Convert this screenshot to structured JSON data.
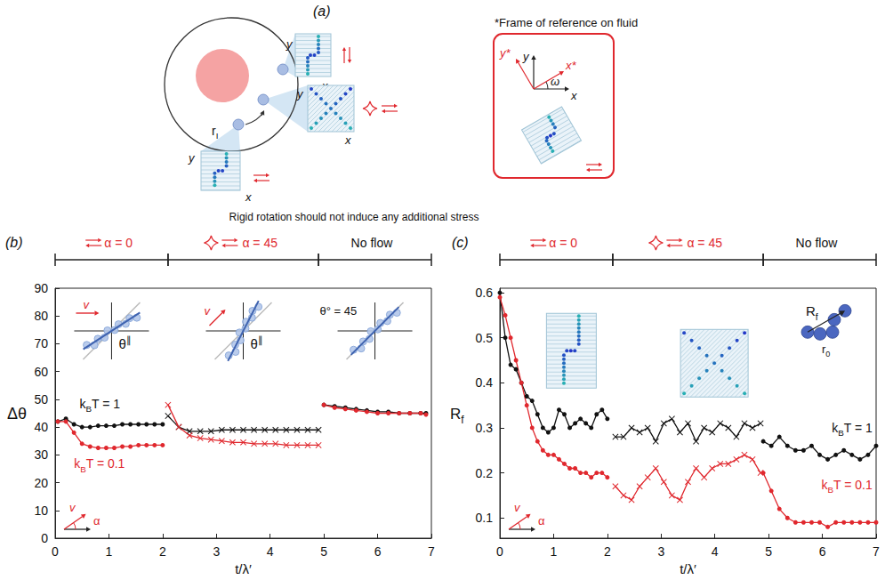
{
  "panel_a": {
    "label": "(a)",
    "radius_label": {
      "text": "r",
      "sub": "I"
    },
    "axis_labels": {
      "x": "x",
      "y": "y"
    },
    "frame": {
      "title": "*Frame of reference on fluid",
      "x": "x",
      "y": "y",
      "x_star": "x*",
      "y_star": "y*",
      "omega": "ω"
    },
    "caption": "Rigid rotation should not induce any additional stress"
  },
  "chart_data": [
    {
      "panel": "(b)",
      "type": "line",
      "x_label": "t/λ′",
      "y_label": "Δθ",
      "xlim": [
        0,
        7
      ],
      "xticks": [
        0,
        1,
        2,
        3,
        4,
        5,
        6,
        7
      ],
      "ylim": [
        0,
        90
      ],
      "yticks": [
        0,
        10,
        20,
        30,
        40,
        50,
        60,
        70,
        80,
        90
      ],
      "grid": false,
      "phases": [
        {
          "label": "α = 0",
          "start": 0,
          "end": 2.1,
          "color": "#e0282e"
        },
        {
          "label": "α = 45",
          "start": 2.1,
          "end": 4.9,
          "color": "#e0282e"
        },
        {
          "label": "No flow",
          "start": 4.9,
          "end": 7,
          "color": "#111111"
        }
      ],
      "series": [
        {
          "name": "kBT = 1",
          "color": "#111111",
          "segments": [
            {
              "marker": "circle",
              "x": [
                0.05,
                0.2,
                0.35,
                0.5,
                0.65,
                0.8,
                0.95,
                1.1,
                1.25,
                1.4,
                1.55,
                1.7,
                1.85,
                2.0
              ],
              "values": [
                42,
                43,
                41,
                40,
                40,
                40.5,
                40.5,
                40.5,
                41,
                41,
                41,
                41,
                41,
                41
              ]
            },
            {
              "marker": "cross",
              "x": [
                2.1,
                2.3,
                2.5,
                2.7,
                2.9,
                3.1,
                3.3,
                3.5,
                3.7,
                3.9,
                4.1,
                4.3,
                4.5,
                4.7,
                4.9
              ],
              "values": [
                44,
                40,
                38.5,
                38.5,
                38.5,
                39,
                39,
                39,
                39,
                39,
                39,
                39,
                39,
                39,
                39
              ]
            },
            {
              "marker": "circle",
              "x": [
                5.0,
                5.2,
                5.4,
                5.6,
                5.8,
                6.0,
                6.2,
                6.4,
                6.6,
                6.8,
                6.9
              ],
              "values": [
                48,
                47.5,
                47,
                46.5,
                46,
                45.5,
                45.5,
                45,
                45,
                45,
                45
              ]
            }
          ]
        },
        {
          "name": "kBT = 0.1",
          "color": "#e0282e",
          "segments": [
            {
              "marker": "circle",
              "x": [
                0.05,
                0.2,
                0.35,
                0.5,
                0.65,
                0.8,
                0.95,
                1.1,
                1.25,
                1.4,
                1.55,
                1.7,
                1.85,
                2.0
              ],
              "values": [
                42,
                42,
                38,
                34,
                33,
                32.5,
                32.5,
                32.5,
                33,
                33,
                33.5,
                33.5,
                33.5,
                33.5
              ]
            },
            {
              "marker": "cross",
              "x": [
                2.1,
                2.3,
                2.5,
                2.7,
                2.9,
                3.1,
                3.3,
                3.5,
                3.7,
                3.9,
                4.1,
                4.3,
                4.5,
                4.7,
                4.9
              ],
              "values": [
                48,
                40,
                37,
                36,
                35.5,
                35,
                34.5,
                34.5,
                34,
                34,
                34,
                33.5,
                33.5,
                33.5,
                33.5
              ]
            },
            {
              "marker": "circle",
              "x": [
                5.0,
                5.2,
                5.4,
                5.6,
                5.8,
                6.0,
                6.2,
                6.4,
                6.6,
                6.8,
                6.9
              ],
              "values": [
                48,
                47,
                46.5,
                46,
                45.5,
                45,
                45,
                45,
                45,
                45,
                44.5
              ]
            }
          ]
        }
      ],
      "insets": [
        {
          "angle_label": {
            "text": "θ",
            "sup": "∥"
          },
          "velocity": "v"
        },
        {
          "angle_label": {
            "text": "θ",
            "sup": "∥"
          },
          "velocity": "v"
        },
        {
          "angle_label": "θ° = 45"
        }
      ],
      "direction_key": {
        "velocity": "v",
        "angle": "α"
      }
    },
    {
      "panel": "(c)",
      "type": "line",
      "x_label": "t/λ′",
      "y_label": {
        "text": "R",
        "sub": "f"
      },
      "xlim": [
        0,
        7
      ],
      "xticks": [
        0,
        1,
        2,
        3,
        4,
        5,
        6,
        7
      ],
      "ylim": [
        0.055,
        0.61
      ],
      "yticks": [
        0.1,
        0.2,
        0.3,
        0.4,
        0.5,
        0.6
      ],
      "grid": false,
      "phases": [
        {
          "label": "α = 0",
          "start": 0,
          "end": 2.1,
          "color": "#e0282e"
        },
        {
          "label": "α = 45",
          "start": 2.1,
          "end": 4.9,
          "color": "#e0282e"
        },
        {
          "label": "No flow",
          "start": 4.9,
          "end": 7,
          "color": "#111111"
        }
      ],
      "series": [
        {
          "name": "kBT = 1",
          "color": "#111111",
          "segments": [
            {
              "marker": "circle",
              "x": [
                0,
                0.1,
                0.2,
                0.3,
                0.4,
                0.5,
                0.6,
                0.7,
                0.8,
                0.9,
                1.0,
                1.1,
                1.2,
                1.3,
                1.4,
                1.5,
                1.6,
                1.7,
                1.8,
                1.9,
                2.0
              ],
              "values": [
                0.6,
                0.5,
                0.44,
                0.43,
                0.4,
                0.37,
                0.36,
                0.33,
                0.3,
                0.29,
                0.3,
                0.34,
                0.33,
                0.3,
                0.31,
                0.32,
                0.31,
                0.3,
                0.33,
                0.34,
                0.32
              ]
            },
            {
              "marker": "cross",
              "x": [
                2.15,
                2.3,
                2.45,
                2.6,
                2.75,
                2.9,
                3.05,
                3.2,
                3.35,
                3.5,
                3.65,
                3.8,
                3.95,
                4.1,
                4.25,
                4.4,
                4.55,
                4.7,
                4.85
              ],
              "values": [
                0.28,
                0.28,
                0.3,
                0.29,
                0.3,
                0.27,
                0.31,
                0.32,
                0.29,
                0.31,
                0.27,
                0.3,
                0.29,
                0.31,
                0.3,
                0.28,
                0.31,
                0.3,
                0.31
              ]
            },
            {
              "marker": "circle",
              "x": [
                4.9,
                5.05,
                5.2,
                5.35,
                5.5,
                5.65,
                5.8,
                5.95,
                6.1,
                6.25,
                6.4,
                6.55,
                6.7,
                6.85,
                7.0
              ],
              "values": [
                0.27,
                0.26,
                0.28,
                0.26,
                0.25,
                0.25,
                0.26,
                0.24,
                0.23,
                0.24,
                0.25,
                0.24,
                0.23,
                0.24,
                0.26
              ]
            }
          ]
        },
        {
          "name": "kBT = 0.1",
          "color": "#e0282e",
          "segments": [
            {
              "marker": "circle",
              "x": [
                0,
                0.1,
                0.2,
                0.3,
                0.4,
                0.5,
                0.6,
                0.7,
                0.8,
                0.9,
                1.0,
                1.1,
                1.2,
                1.3,
                1.4,
                1.5,
                1.6,
                1.7,
                1.8,
                1.9,
                2.0
              ],
              "values": [
                0.59,
                0.55,
                0.5,
                0.45,
                0.4,
                0.35,
                0.3,
                0.27,
                0.25,
                0.24,
                0.24,
                0.23,
                0.22,
                0.21,
                0.21,
                0.2,
                0.2,
                0.19,
                0.2,
                0.2,
                0.19
              ]
            },
            {
              "marker": "cross",
              "x": [
                2.15,
                2.3,
                2.45,
                2.6,
                2.75,
                2.9,
                3.05,
                3.2,
                3.35,
                3.5,
                3.65,
                3.8,
                3.95,
                4.1,
                4.25,
                4.4,
                4.55,
                4.7,
                4.85
              ],
              "values": [
                0.17,
                0.15,
                0.14,
                0.17,
                0.19,
                0.21,
                0.18,
                0.15,
                0.14,
                0.18,
                0.21,
                0.19,
                0.21,
                0.22,
                0.22,
                0.23,
                0.24,
                0.23,
                0.2
              ]
            },
            {
              "marker": "circle",
              "x": [
                4.9,
                5.05,
                5.2,
                5.35,
                5.5,
                5.65,
                5.8,
                5.95,
                6.1,
                6.25,
                6.4,
                6.55,
                6.7,
                6.85,
                7.0
              ],
              "values": [
                0.2,
                0.16,
                0.12,
                0.1,
                0.09,
                0.09,
                0.09,
                0.09,
                0.08,
                0.09,
                0.09,
                0.09,
                0.09,
                0.09,
                0.09
              ]
            }
          ]
        }
      ],
      "cluster_labels": {
        "span": {
          "text": "R",
          "sub": "f"
        },
        "bond": {
          "text": "r",
          "sub": "0"
        }
      },
      "direction_key": {
        "velocity": "v",
        "angle": "α"
      }
    }
  ]
}
